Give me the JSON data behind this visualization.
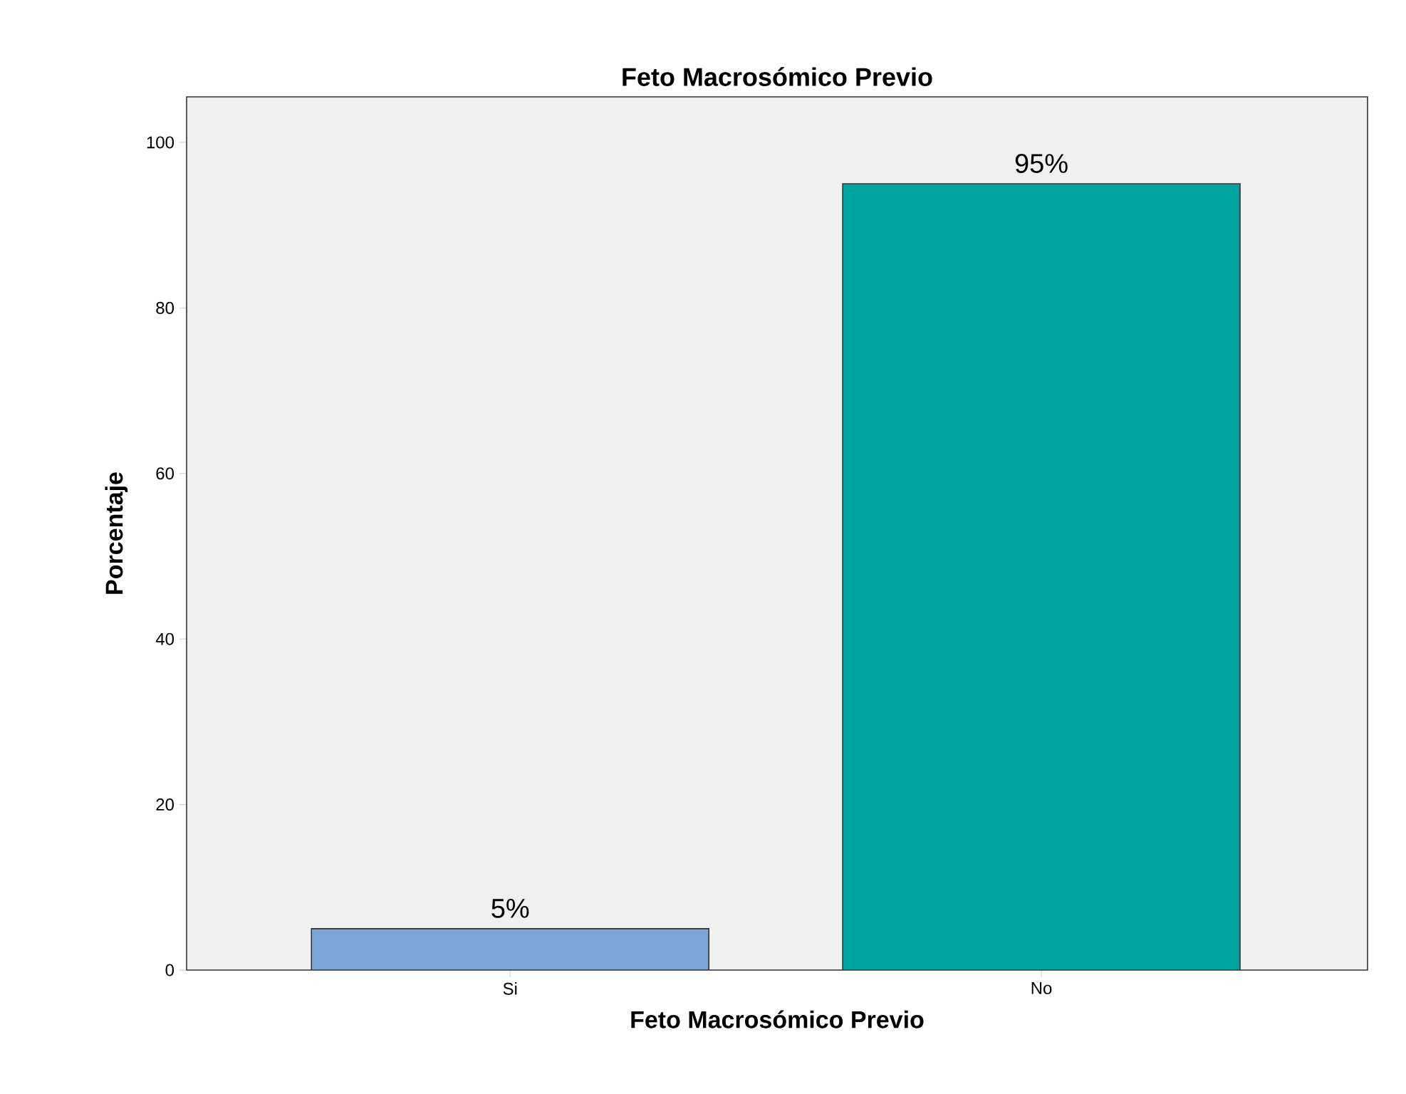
{
  "chart_data": {
    "type": "bar",
    "title": "Feto Macrosómico Previo",
    "xlabel": "Feto Macrosómico Previo",
    "ylabel": "Porcentaje",
    "categories": [
      "Si",
      "No"
    ],
    "values": [
      5,
      95
    ],
    "colors": [
      "#7ba7d6",
      "#00a5a0"
    ],
    "value_labels": [
      "5%",
      "95%"
    ],
    "ylim": [
      0,
      105.5
    ],
    "yticks": [
      0,
      20,
      40,
      60,
      80,
      100
    ]
  }
}
